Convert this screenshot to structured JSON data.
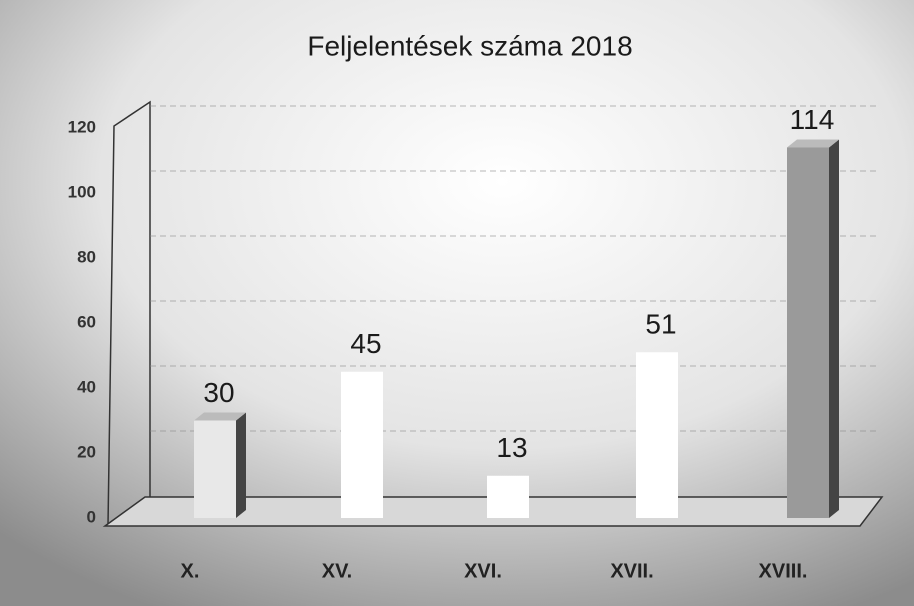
{
  "chart_data": {
    "type": "bar",
    "title": "Feljelentések száma 2018",
    "categories": [
      "X.",
      "XV.",
      "XVI.",
      "XVII.",
      "XVIII."
    ],
    "values": [
      30,
      45,
      13,
      51,
      114
    ],
    "colors": [
      "#e8e8e8",
      "#ffffff",
      "#ffffff",
      "#ffffff",
      "#9a9a9a"
    ],
    "ylim": [
      0,
      120
    ],
    "yticks": [
      0,
      20,
      40,
      60,
      80,
      100,
      120
    ],
    "grid": true
  }
}
